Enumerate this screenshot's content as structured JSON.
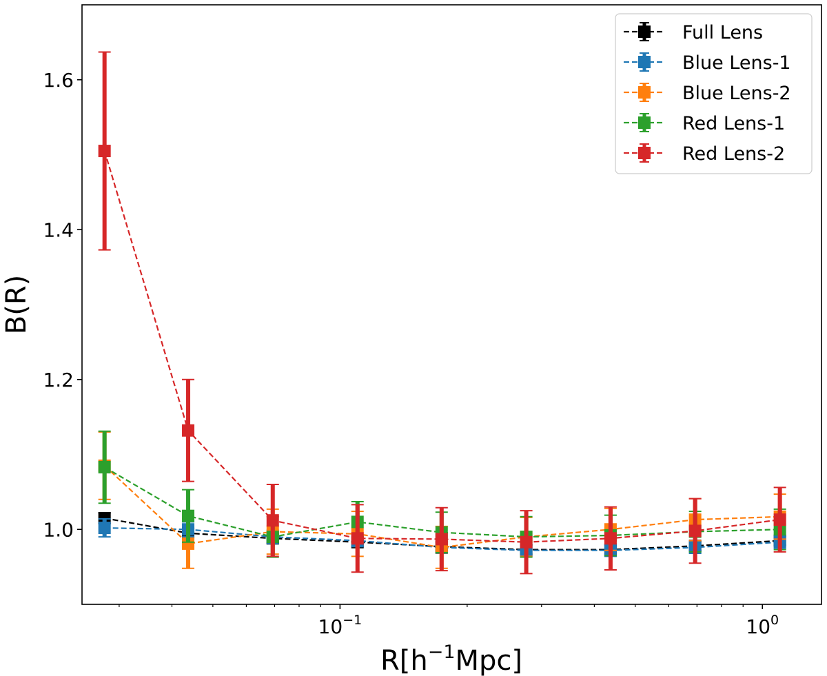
{
  "chart_data": {
    "type": "line",
    "xscale": "log",
    "xlabel": "R[h",
    "xlabel_sup": "−1",
    "xlabel_tail": "Mpc]",
    "ylabel": "B(R)",
    "xlim": [
      0.0245,
      1.38
    ],
    "ylim": [
      0.9,
      1.7
    ],
    "yticks": [
      1.0,
      1.2,
      1.4,
      1.6
    ],
    "ytick_labels": [
      "1.0",
      "1.2",
      "1.4",
      "1.6"
    ],
    "xticks": [
      {
        "value": 0.1,
        "base": "10",
        "exp": "−1"
      },
      {
        "value": 1.0,
        "base": "10",
        "exp": "0"
      }
    ],
    "x": [
      0.0277,
      0.0437,
      0.0693,
      0.11,
      0.174,
      0.276,
      0.437,
      0.693,
      1.1
    ],
    "legend_position": "top-right",
    "series": [
      {
        "name": "Full Lens",
        "color": "#000000",
        "values": [
          1.015,
          0.995,
          0.988,
          0.983,
          0.977,
          0.973,
          0.973,
          0.978,
          0.985
        ],
        "errors": [
          0.007,
          0.006,
          0.006,
          0.006,
          0.006,
          0.006,
          0.006,
          0.006,
          0.006
        ]
      },
      {
        "name": "Blue Lens-1",
        "color": "#1f77b4",
        "values": [
          1.002,
          1.0,
          0.99,
          0.985,
          0.976,
          0.972,
          0.972,
          0.976,
          0.983
        ],
        "errors": [
          0.012,
          0.01,
          0.009,
          0.008,
          0.008,
          0.008,
          0.008,
          0.008,
          0.008
        ]
      },
      {
        "name": "Blue Lens-2",
        "color": "#ff7f0e",
        "values": [
          1.085,
          0.981,
          0.997,
          0.994,
          0.976,
          0.99,
          1.0,
          1.013,
          1.017
        ],
        "errors": [
          0.045,
          0.033,
          0.03,
          0.03,
          0.028,
          0.026,
          0.028,
          0.028,
          0.03
        ]
      },
      {
        "name": "Red Lens-1",
        "color": "#2ca02c",
        "values": [
          1.083,
          1.018,
          0.99,
          1.01,
          0.996,
          0.99,
          0.992,
          0.997,
          1.0
        ],
        "errors": [
          0.048,
          0.035,
          0.027,
          0.027,
          0.027,
          0.027,
          0.027,
          0.027,
          0.027
        ]
      },
      {
        "name": "Red Lens-2",
        "color": "#d62728",
        "values": [
          1.505,
          1.132,
          1.012,
          0.988,
          0.987,
          0.983,
          0.988,
          0.998,
          1.013
        ],
        "errors": [
          0.132,
          0.068,
          0.048,
          0.045,
          0.042,
          0.042,
          0.042,
          0.043,
          0.043
        ]
      }
    ]
  }
}
